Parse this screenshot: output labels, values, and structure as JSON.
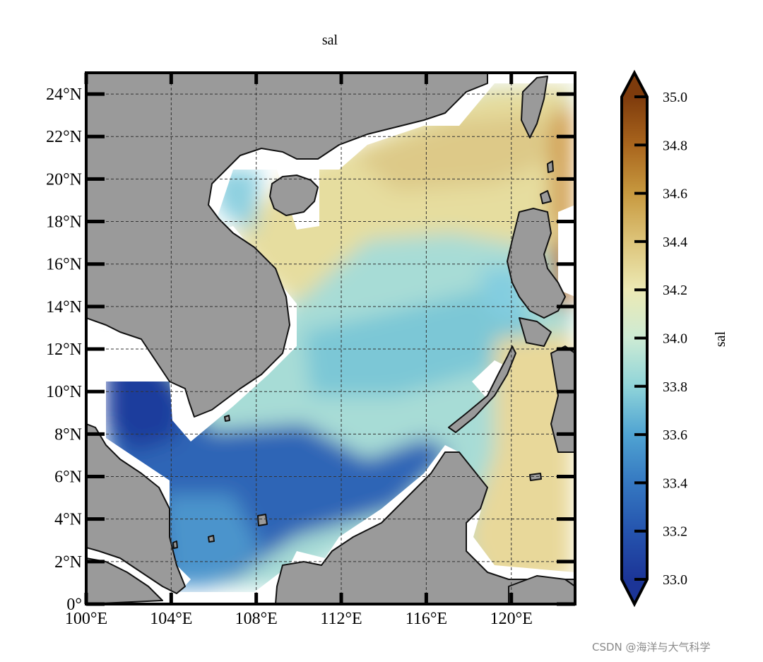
{
  "figure": {
    "title": "sal",
    "colorbar_label": "sal",
    "watermark": "CSDN @海洋与大气科学"
  },
  "map": {
    "lon_range": [
      100,
      123
    ],
    "lat_range": [
      0,
      25
    ],
    "lon_ticks": [
      100,
      104,
      108,
      112,
      116,
      120
    ],
    "lon_tick_labels": [
      "100°E",
      "104°E",
      "108°E",
      "112°E",
      "116°E",
      "120°E"
    ],
    "lat_ticks": [
      0,
      2,
      4,
      6,
      8,
      10,
      12,
      14,
      16,
      18,
      20,
      22,
      24
    ],
    "lat_tick_labels": [
      "0°",
      "2°N",
      "4°N",
      "6°N",
      "8°N",
      "10°N",
      "12°N",
      "14°N",
      "16°N",
      "18°N",
      "20°N",
      "22°N",
      "24°N"
    ],
    "gridlines": "dashed",
    "land_color": "#9a9a9a",
    "nodata_color": "#ffffff"
  },
  "colorbar": {
    "min": 33.0,
    "max": 35.0,
    "extend": "both",
    "ticks": [
      33.0,
      33.2,
      33.4,
      33.6,
      33.8,
      34.0,
      34.2,
      34.4,
      34.6,
      34.8,
      35.0
    ],
    "tick_labels": [
      "33.0",
      "33.2",
      "33.4",
      "33.6",
      "33.8",
      "34.0",
      "34.2",
      "34.4",
      "34.6",
      "34.8",
      "35.0"
    ],
    "colormap": [
      [
        33.0,
        "#1c3597"
      ],
      [
        33.2,
        "#2554ae"
      ],
      [
        33.4,
        "#3578c1"
      ],
      [
        33.6,
        "#4fa3d2"
      ],
      [
        33.8,
        "#8fd4d9"
      ],
      [
        34.0,
        "#cdebd4"
      ],
      [
        34.2,
        "#ece9b4"
      ],
      [
        34.4,
        "#ddc47a"
      ],
      [
        34.6,
        "#c7993f"
      ],
      [
        34.8,
        "#a9651d"
      ],
      [
        35.0,
        "#7e3b0c"
      ]
    ]
  }
}
